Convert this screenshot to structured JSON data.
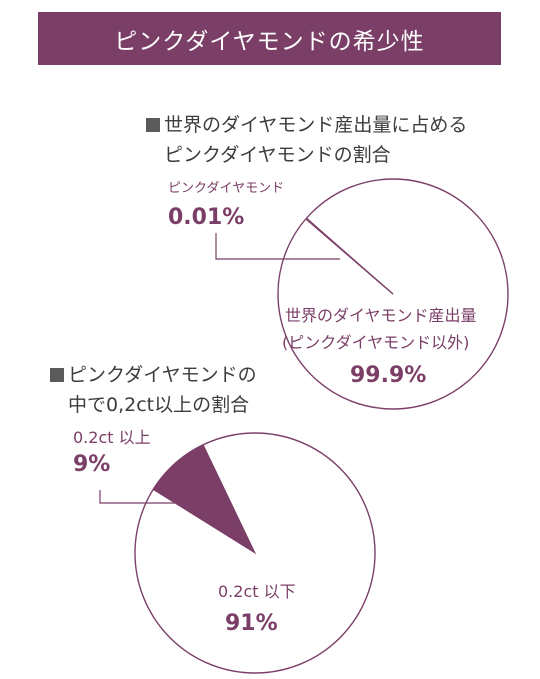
{
  "title": "ピンクダイヤモンドの希少性",
  "colors": {
    "accent": "#7b3f67",
    "text": "#3d3d3d",
    "background": "#ffffff"
  },
  "sections": [
    {
      "heading_line1": "世界のダイヤモンド産出量に占める",
      "heading_line2": "ピンクダイヤモンドの割合",
      "slice_label": "ピンクダイヤモンド",
      "slice_value": "0.01%",
      "rest_label_line1": "世界のダイヤモンド産出量",
      "rest_label_line2": "(ピンクダイヤモンド以外)",
      "rest_value": "99.9%"
    },
    {
      "heading_line1": "ピンクダイヤモンドの",
      "heading_line2": "中で0,2ct以上の割合",
      "slice_label": "0.2ct 以上",
      "slice_value": "9%",
      "rest_label": "0.2ct 以下",
      "rest_value": "91%"
    }
  ],
  "chart_data": [
    {
      "type": "pie",
      "title": "世界のダイヤモンド産出量に占めるピンクダイヤモンドの割合",
      "slices": [
        {
          "label": "ピンクダイヤモンド",
          "value": 0.01
        },
        {
          "label": "世界のダイヤモンド産出量(ピンクダイヤモンド以外)",
          "value": 99.9
        }
      ]
    },
    {
      "type": "pie",
      "title": "ピンクダイヤモンドの中で0,2ct以上の割合",
      "slices": [
        {
          "label": "0.2ct 以上",
          "value": 9
        },
        {
          "label": "0.2ct 以下",
          "value": 91
        }
      ]
    }
  ]
}
